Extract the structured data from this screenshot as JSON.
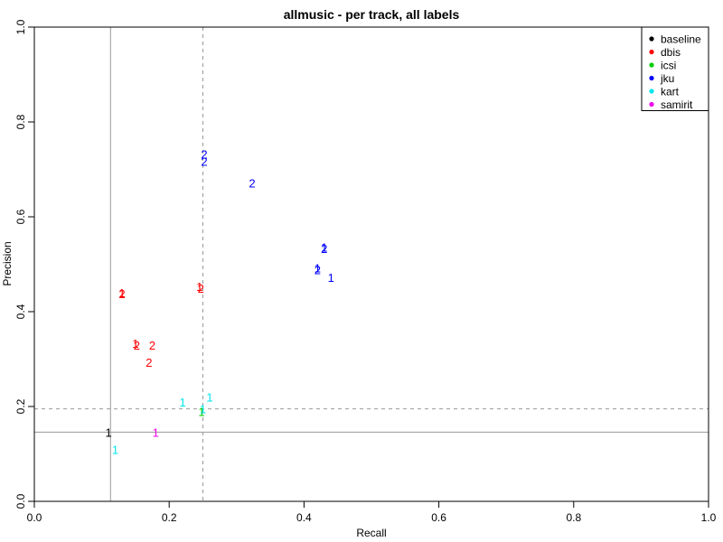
{
  "chart_data": {
    "type": "scatter",
    "title": "allmusic - per track, all labels",
    "xlabel": "Recall",
    "ylabel": "Precision",
    "xlim": [
      0,
      1
    ],
    "ylim": [
      0,
      1
    ],
    "x_ticks": [
      "0.0",
      "0.2",
      "0.4",
      "0.6",
      "0.8",
      "1.0"
    ],
    "y_ticks": [
      "0.0",
      "0.2",
      "0.4",
      "0.6",
      "0.8",
      "1.0"
    ],
    "grid": false,
    "legend_position": "top-right",
    "reference_lines": [
      {
        "orientation": "vertical",
        "value": 0.113,
        "style": "solid",
        "color": "#999999"
      },
      {
        "orientation": "horizontal",
        "value": 0.146,
        "style": "solid",
        "color": "#999999"
      },
      {
        "orientation": "vertical",
        "value": 0.25,
        "style": "dashed",
        "color": "#999999"
      },
      {
        "orientation": "horizontal",
        "value": 0.195,
        "style": "dashed",
        "color": "#999999"
      }
    ],
    "series": [
      {
        "name": "baseline",
        "color": "#000000",
        "points": [
          {
            "x": 0.11,
            "y": 0.146,
            "label": "1"
          }
        ]
      },
      {
        "name": "dbis",
        "color": "#ff0000",
        "points": [
          {
            "x": 0.13,
            "y": 0.44,
            "label": "1"
          },
          {
            "x": 0.13,
            "y": 0.438,
            "label": "2"
          },
          {
            "x": 0.15,
            "y": 0.333,
            "label": "1"
          },
          {
            "x": 0.152,
            "y": 0.33,
            "label": "2"
          },
          {
            "x": 0.175,
            "y": 0.33,
            "label": "2"
          },
          {
            "x": 0.17,
            "y": 0.293,
            "label": "2"
          },
          {
            "x": 0.245,
            "y": 0.453,
            "label": "1"
          },
          {
            "x": 0.247,
            "y": 0.45,
            "label": "2"
          }
        ]
      },
      {
        "name": "icsi",
        "color": "#00cd00",
        "points": [
          {
            "x": 0.248,
            "y": 0.19,
            "label": "1"
          }
        ]
      },
      {
        "name": "jku",
        "color": "#0000ff",
        "points": [
          {
            "x": 0.252,
            "y": 0.732,
            "label": "2"
          },
          {
            "x": 0.252,
            "y": 0.717,
            "label": "2"
          },
          {
            "x": 0.323,
            "y": 0.671,
            "label": "2"
          },
          {
            "x": 0.43,
            "y": 0.536,
            "label": "1"
          },
          {
            "x": 0.43,
            "y": 0.533,
            "label": "2"
          },
          {
            "x": 0.42,
            "y": 0.492,
            "label": "1"
          },
          {
            "x": 0.42,
            "y": 0.489,
            "label": "2"
          },
          {
            "x": 0.44,
            "y": 0.472,
            "label": "1"
          }
        ]
      },
      {
        "name": "kart",
        "color": "#00e5ee",
        "points": [
          {
            "x": 0.22,
            "y": 0.21,
            "label": "1"
          },
          {
            "x": 0.26,
            "y": 0.22,
            "label": "1"
          },
          {
            "x": 0.25,
            "y": 0.195,
            "label": "1"
          },
          {
            "x": 0.12,
            "y": 0.11,
            "label": "1"
          }
        ]
      },
      {
        "name": "samirit",
        "color": "#ee00ee",
        "points": [
          {
            "x": 0.18,
            "y": 0.146,
            "label": "1"
          }
        ]
      }
    ]
  }
}
